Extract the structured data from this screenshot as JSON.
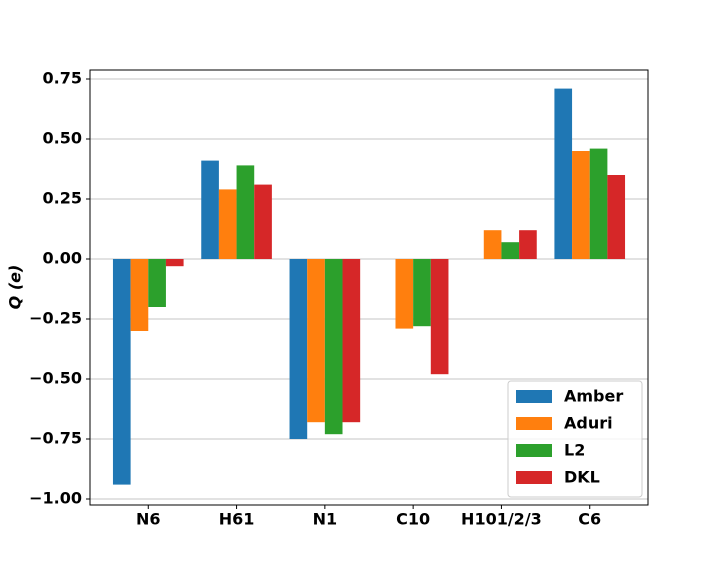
{
  "chart_data": {
    "type": "bar",
    "ylabel": "Q (e)",
    "categories": [
      "N6",
      "H61",
      "N1",
      "C10",
      "H101/2/3",
      "C6"
    ],
    "series": [
      {
        "name": "Amber",
        "color": "#1f77b4",
        "values": [
          -0.94,
          0.41,
          -0.75,
          0,
          0,
          0.71
        ]
      },
      {
        "name": "Aduri",
        "color": "#ff7f0e",
        "values": [
          -0.3,
          0.29,
          -0.68,
          -0.29,
          0.12,
          0.45
        ]
      },
      {
        "name": "L2",
        "color": "#2ca02c",
        "values": [
          -0.2,
          0.39,
          -0.73,
          -0.28,
          0.07,
          0.46
        ]
      },
      {
        "name": "DKL",
        "color": "#d62728",
        "values": [
          -0.03,
          0.31,
          -0.68,
          -0.48,
          0.12,
          0.35
        ]
      }
    ],
    "ylim": [
      -1.025,
      0.7875
    ],
    "yticks": [
      {
        "value": -1.0,
        "label": "−1.00"
      },
      {
        "value": -0.75,
        "label": "−0.75"
      },
      {
        "value": -0.5,
        "label": "−0.50"
      },
      {
        "value": -0.25,
        "label": "−0.25"
      },
      {
        "value": 0,
        "label": "0.00"
      },
      {
        "value": 0.25,
        "label": "0.25"
      },
      {
        "value": 0.5,
        "label": "0.50"
      },
      {
        "value": 0.75,
        "label": "0.75"
      }
    ],
    "grid": true,
    "legend": "lower right"
  }
}
